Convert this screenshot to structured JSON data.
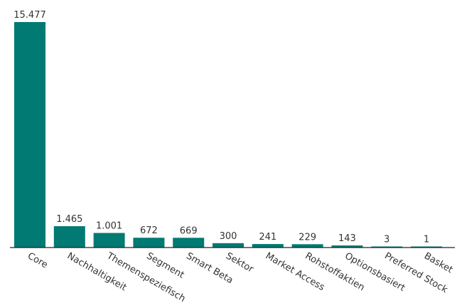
{
  "chart_data": {
    "type": "bar",
    "categories": [
      "Core",
      "Nachhaltigkeit",
      "Themenspeziefisch",
      "Segment",
      "Smart Beta",
      "Sektor",
      "Market Access",
      "Rohstoffaktien",
      "Optionsbasiert",
      "Preferred Stock",
      "Basket"
    ],
    "values": [
      15477,
      1465,
      1001,
      672,
      669,
      300,
      241,
      229,
      143,
      3,
      1
    ],
    "value_labels": [
      "15.477",
      "1.465",
      "1.001",
      "672",
      "669",
      "300",
      "241",
      "229",
      "143",
      "3",
      "1"
    ],
    "title": "",
    "xlabel": "",
    "ylabel": "",
    "ylim": [
      0,
      15477
    ],
    "grid": false,
    "legend": "none",
    "colors": {
      "bar": "#007a72",
      "axis": "#222222",
      "text": "#333333"
    }
  }
}
